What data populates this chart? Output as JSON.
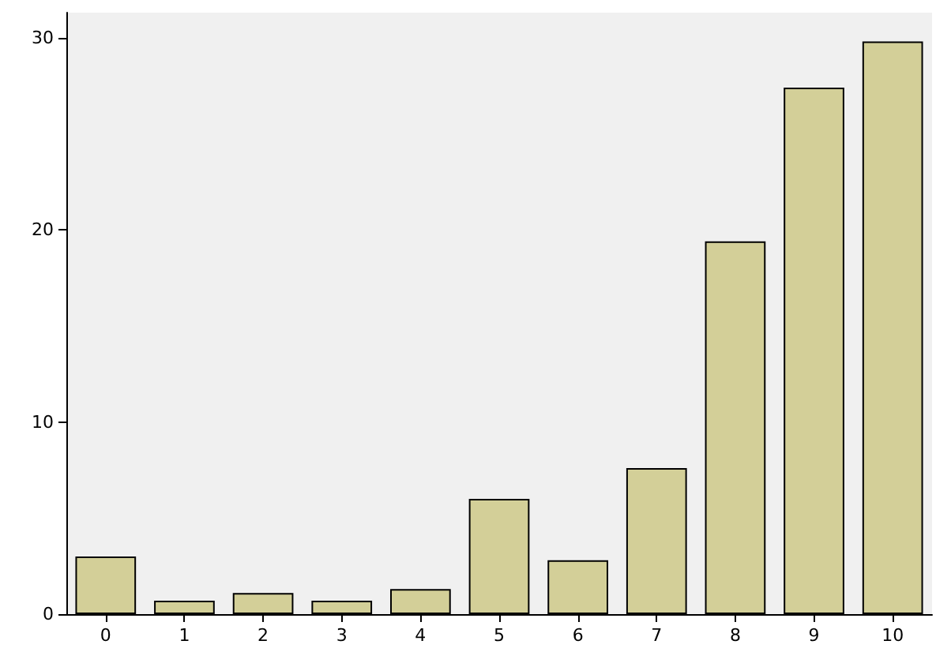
{
  "chart_data": {
    "type": "bar",
    "categories": [
      "0",
      "1",
      "2",
      "3",
      "4",
      "5",
      "6",
      "7",
      "8",
      "9",
      "10"
    ],
    "values": [
      3.0,
      0.7,
      1.1,
      0.7,
      1.3,
      6.0,
      2.8,
      7.6,
      19.4,
      27.4,
      29.8
    ],
    "color": "#d3cf98",
    "ylim": [
      0,
      31.3
    ],
    "yticks": [
      0,
      10,
      20,
      30
    ],
    "grid": false
  }
}
